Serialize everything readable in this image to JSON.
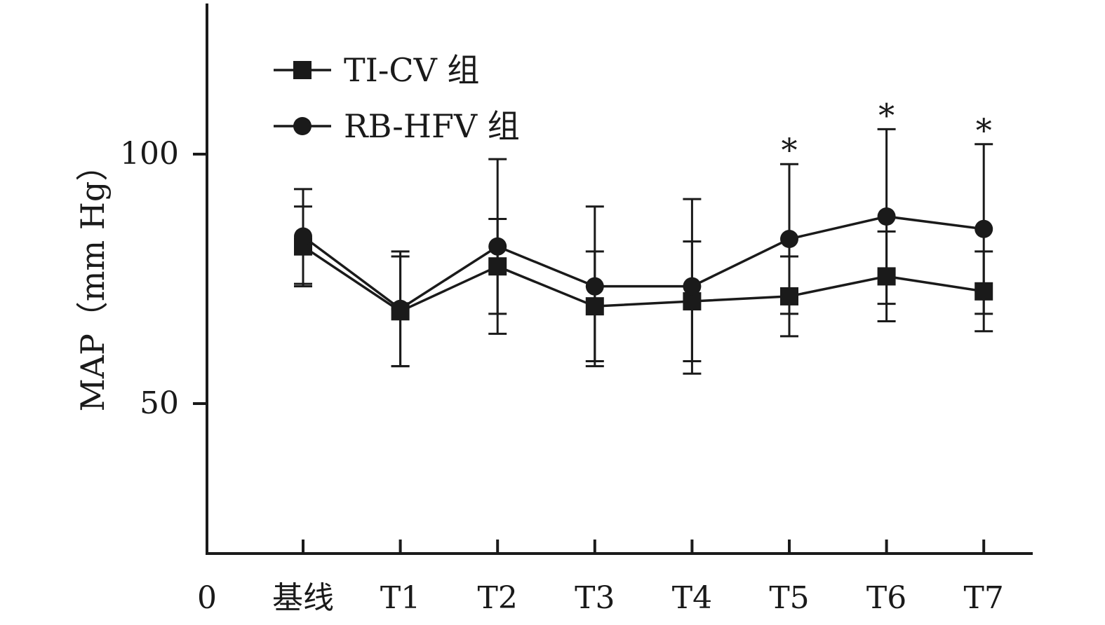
{
  "chart_data": {
    "type": "line",
    "categories": [
      "基线",
      "T1",
      "T2",
      "T3",
      "T4",
      "T5",
      "T6",
      "T7"
    ],
    "x_origin_label": "0",
    "ylabel": "MAP（mm Hg）",
    "ylim": [
      20,
      130
    ],
    "yticks": [
      50,
      100
    ],
    "grid": false,
    "legend_position": "top-left",
    "series": [
      {
        "name": "TI-CV 组",
        "marker": "square",
        "values": [
          81.5,
          68.5,
          77.5,
          69.5,
          70.5,
          71.5,
          75.5,
          72.5
        ],
        "sd": [
          8,
          11,
          9.5,
          11,
          12,
          8,
          9,
          8
        ]
      },
      {
        "name": "RB-HFV 组",
        "marker": "circle",
        "values": [
          83.5,
          69,
          81.5,
          73.5,
          73.5,
          83,
          87.5,
          85
        ],
        "sd": [
          9.5,
          11.5,
          17.5,
          16,
          17.5,
          15,
          17.5,
          17
        ]
      }
    ],
    "annotations": [
      {
        "category": "T5",
        "text": "*"
      },
      {
        "category": "T6",
        "text": "*"
      },
      {
        "category": "T7",
        "text": "*"
      }
    ],
    "color": "#1a1a1a"
  }
}
